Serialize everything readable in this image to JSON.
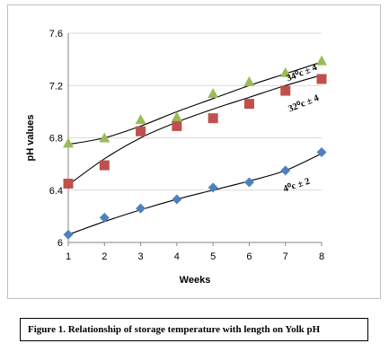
{
  "chart_data": {
    "type": "scatter",
    "xlabel": "Weeks",
    "ylabel": "pH values",
    "x": [
      1,
      2,
      3,
      4,
      5,
      6,
      7,
      8
    ],
    "xlim": [
      1,
      8
    ],
    "ylim": [
      6,
      7.6
    ],
    "yticks": [
      6,
      6.4,
      6.8,
      7.2,
      7.6
    ],
    "ytick_labels": [
      "6",
      "6.4",
      "6.8",
      "7.2",
      "7.6"
    ],
    "xtick_labels": [
      "1",
      "2",
      "3",
      "4",
      "5",
      "6",
      "7",
      "8"
    ],
    "grid": "horizontal",
    "series": [
      {
        "label": "34⁰c ± 4",
        "marker": "triangle",
        "color": "#9bbb59",
        "values": [
          6.76,
          6.8,
          6.94,
          6.96,
          7.14,
          7.23,
          7.3,
          7.39
        ],
        "trend": [
          6.75,
          6.8,
          6.89,
          7.0,
          7.1,
          7.2,
          7.29,
          7.38
        ]
      },
      {
        "label": "32⁰c ± 4",
        "marker": "square",
        "color": "#c0504d",
        "values": [
          6.45,
          6.59,
          6.85,
          6.89,
          6.95,
          7.06,
          7.16,
          7.25
        ],
        "trend": [
          6.44,
          6.64,
          6.8,
          6.92,
          7.02,
          7.11,
          7.2,
          7.28
        ]
      },
      {
        "label": "4⁰c ± 2",
        "marker": "diamond",
        "color": "#4f81bd",
        "values": [
          6.06,
          6.19,
          6.26,
          6.33,
          6.42,
          6.46,
          6.55,
          6.69
        ],
        "trend": [
          6.06,
          6.16,
          6.25,
          6.33,
          6.4,
          6.47,
          6.55,
          6.68
        ]
      }
    ]
  },
  "caption": "Figure 1. Relationship of storage temperature with length on Yolk pH"
}
